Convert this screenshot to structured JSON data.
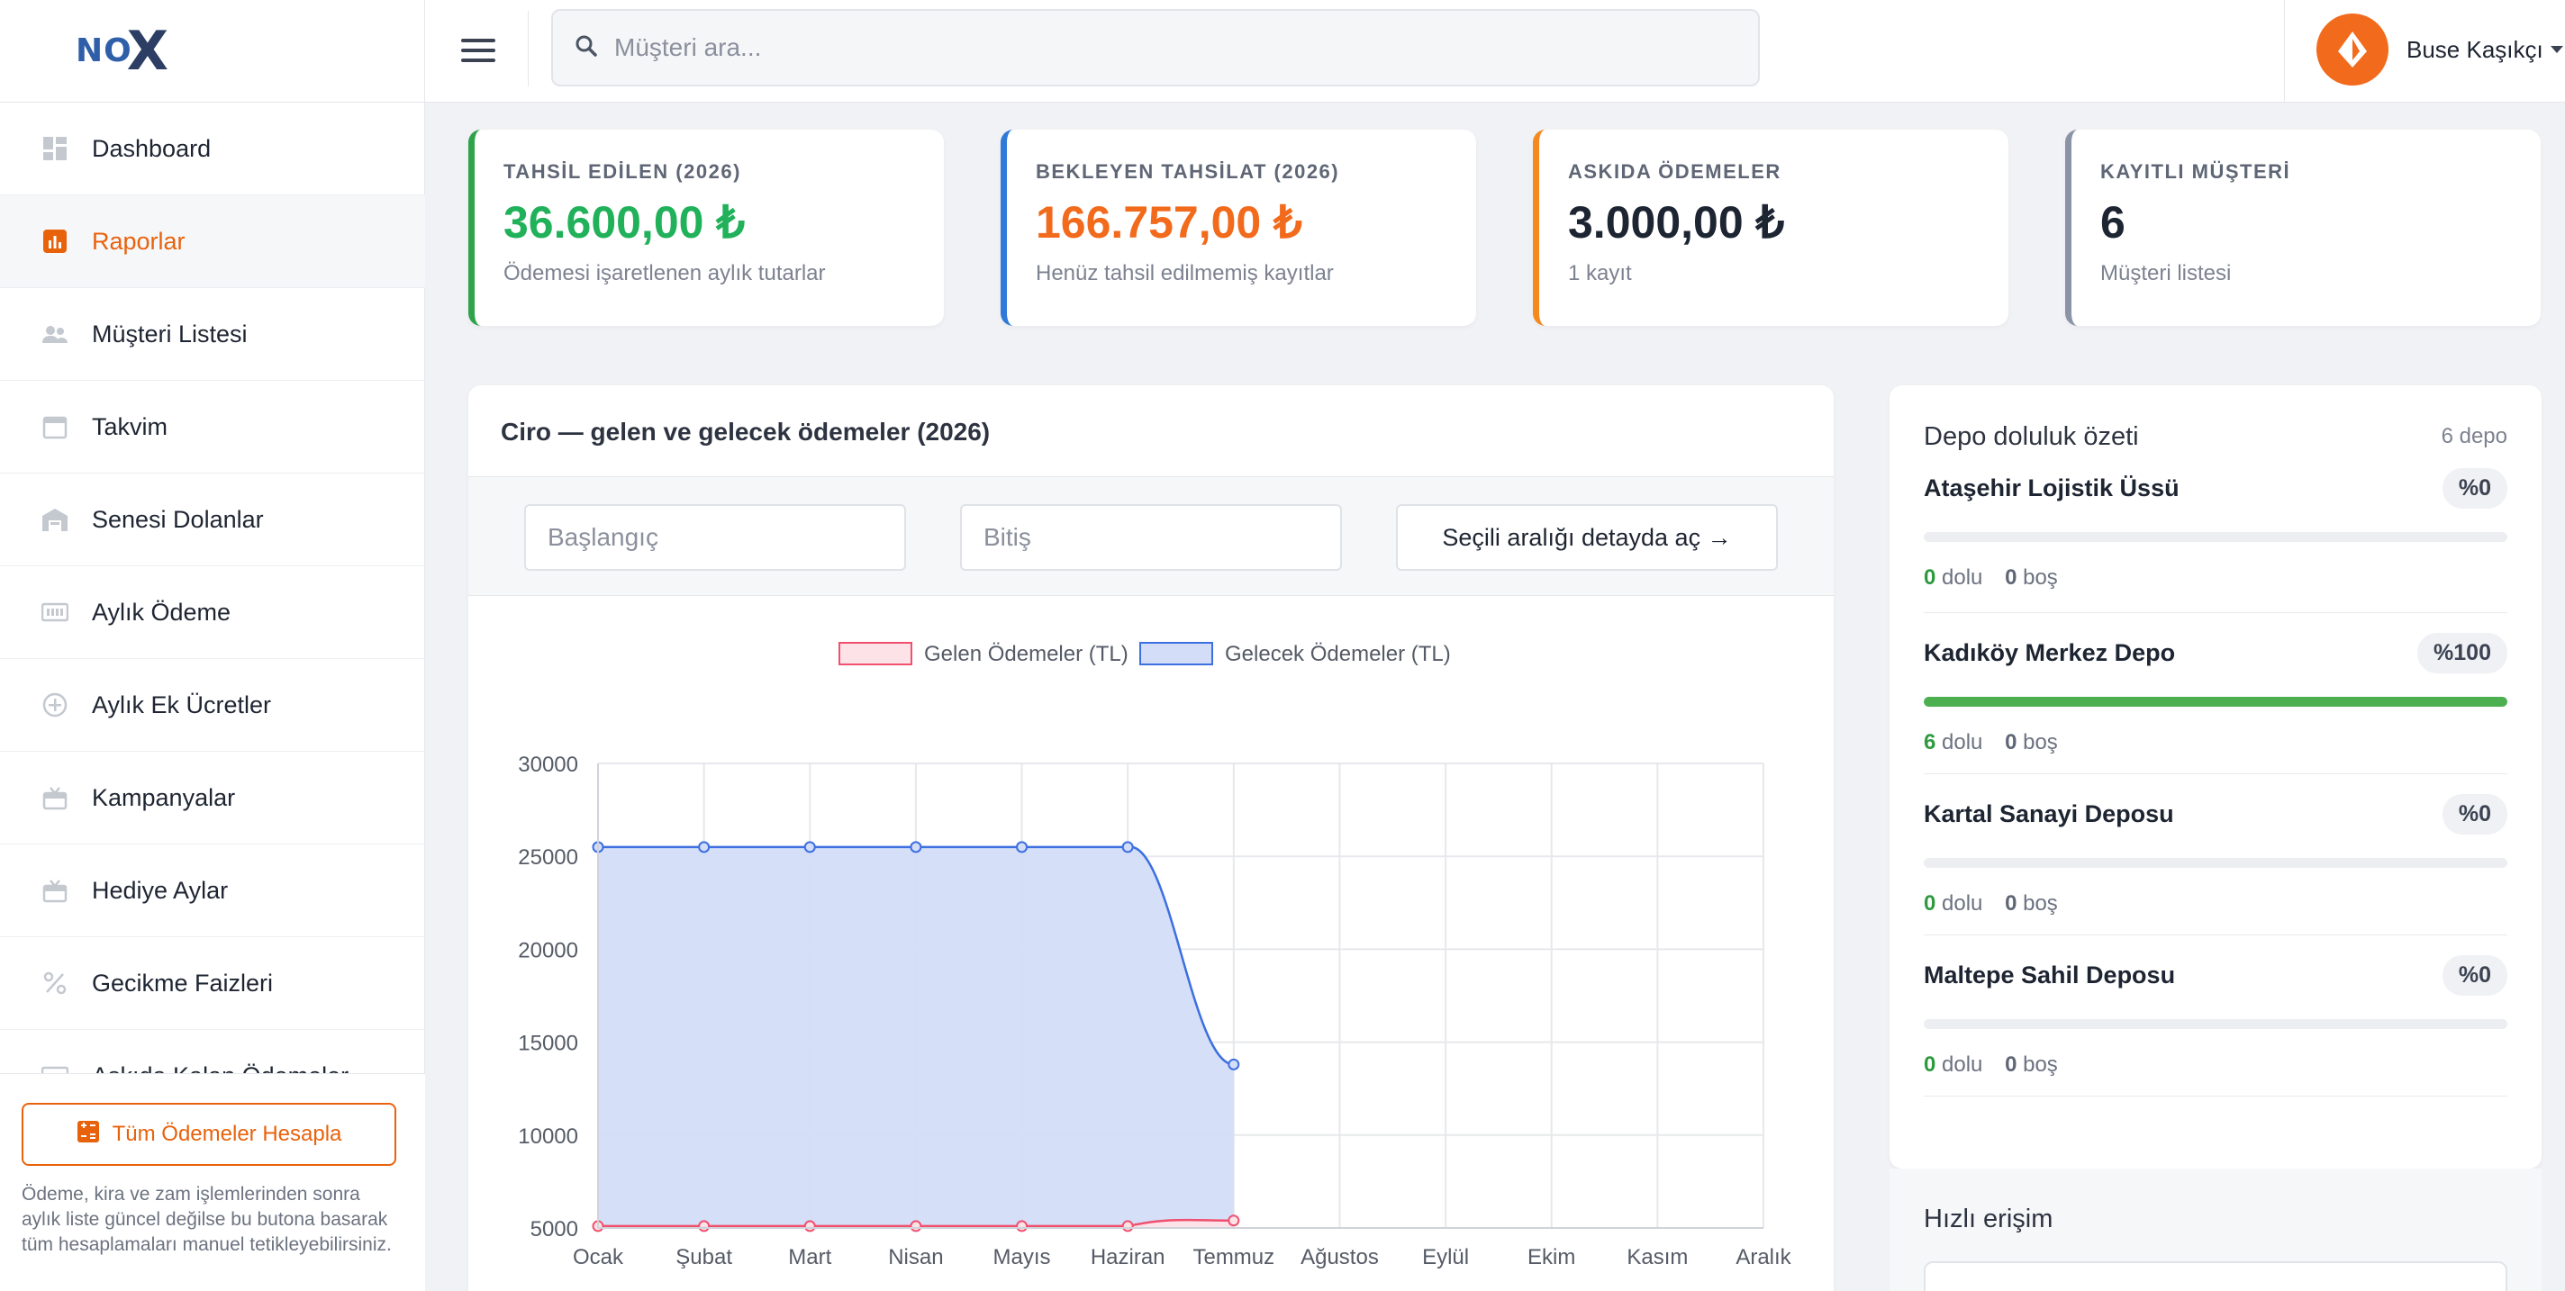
{
  "brand": {
    "logo_text": "NO",
    "logo_mark": "X"
  },
  "sidebar": {
    "items": [
      {
        "label": "Dashboard",
        "icon": "dashboard-icon"
      },
      {
        "label": "Raporlar",
        "icon": "bar-chart-icon",
        "active": true
      },
      {
        "label": "Müşteri Listesi",
        "icon": "users-icon"
      },
      {
        "label": "Takvim",
        "icon": "calendar-icon"
      },
      {
        "label": "Senesi Dolanlar",
        "icon": "warehouse-icon"
      },
      {
        "label": "Aylık Ödeme",
        "icon": "payment-icon"
      },
      {
        "label": "Aylık Ek Ücretler",
        "icon": "plus-circle-icon"
      },
      {
        "label": "Kampanyalar",
        "icon": "gift-icon"
      },
      {
        "label": "Hediye Aylar",
        "icon": "gift-icon"
      },
      {
        "label": "Gecikme Faizleri",
        "icon": "percent-icon"
      },
      {
        "label": "Askıda Kalan Ödemeler",
        "icon": "pause-icon"
      }
    ],
    "calc_button": "Tüm Ödemeler Hesapla",
    "calc_note": "Ödeme, kira ve zam işlemlerinden sonra aylık liste güncel değilse bu butona basarak tüm hesaplamaları manuel tetikleyebilirsiniz."
  },
  "topbar": {
    "search_placeholder": "Müşteri ara...",
    "user_name": "Buse Kaşıkçı"
  },
  "stats": [
    {
      "label": "TAHSİL EDİLEN (2026)",
      "value": "36.600,00 ₺",
      "sub": "Ödemesi işaretlenen aylık tutarlar",
      "color": "#21b15a",
      "border": "#2fa24a"
    },
    {
      "label": "BEKLEYEN TAHSİLAT (2026)",
      "value": "166.757,00 ₺",
      "sub": "Henüz tahsil edilmemiş kayıtlar",
      "color": "#f26a1b",
      "border": "#2f7ad8"
    },
    {
      "label": "ASKIDA ÖDEMELER",
      "value": "3.000,00 ₺",
      "sub": "1 kayıt",
      "color": "#1e2532",
      "border": "#f5891f"
    },
    {
      "label": "KAYITLI MÜŞTERİ",
      "value": "6",
      "sub": "Müşteri listesi",
      "color": "#1e2532",
      "border": "#8a94a6"
    }
  ],
  "chart_card": {
    "title": "Ciro — gelen ve gelecek ödemeler (2026)",
    "start_placeholder": "Başlangıç",
    "end_placeholder": "Bitiş",
    "detail_button": "Seçili aralığı detayda aç →"
  },
  "chart_data": {
    "type": "line",
    "categories": [
      "Ocak",
      "Şubat",
      "Mart",
      "Nisan",
      "Mayıs",
      "Haziran",
      "Temmuz",
      "Ağustos",
      "Eylül",
      "Ekim",
      "Kasım",
      "Aralık"
    ],
    "series": [
      {
        "name": "Gelen Ödemeler (TL)",
        "values": [
          5100,
          5100,
          5100,
          5100,
          5100,
          5100,
          5400,
          null,
          null,
          null,
          null,
          null
        ],
        "color": "#f0506e",
        "fill": "#fde3e8"
      },
      {
        "name": "Gelecek Ödemeler (TL)",
        "values": [
          25500,
          25500,
          25500,
          25500,
          25500,
          25500,
          13800,
          null,
          null,
          null,
          null,
          null
        ],
        "color": "#3d6fe0",
        "fill": "#d3ddf8"
      }
    ],
    "y_ticks": [
      30000,
      25000,
      20000,
      15000,
      10000,
      5000
    ],
    "ylim": [
      5000,
      30000
    ],
    "grid": true,
    "legend": "top-center"
  },
  "depot": {
    "title": "Depo doluluk özeti",
    "count": "6 depo",
    "full_label": "dolu",
    "empty_label": "boş",
    "items": [
      {
        "name": "Ataşehir Lojistik Üssü",
        "pct_text": "%0",
        "pct": 0,
        "full": "0",
        "empty": "0"
      },
      {
        "name": "Kadıköy Merkez Depo",
        "pct_text": "%100",
        "pct": 100,
        "full": "6",
        "empty": "0"
      },
      {
        "name": "Kartal Sanayi Deposu",
        "pct_text": "%0",
        "pct": 0,
        "full": "0",
        "empty": "0"
      },
      {
        "name": "Maltepe Sahil Deposu",
        "pct_text": "%0",
        "pct": 0,
        "full": "0",
        "empty": "0"
      }
    ]
  },
  "quick": {
    "title": "Hızlı erişim"
  }
}
